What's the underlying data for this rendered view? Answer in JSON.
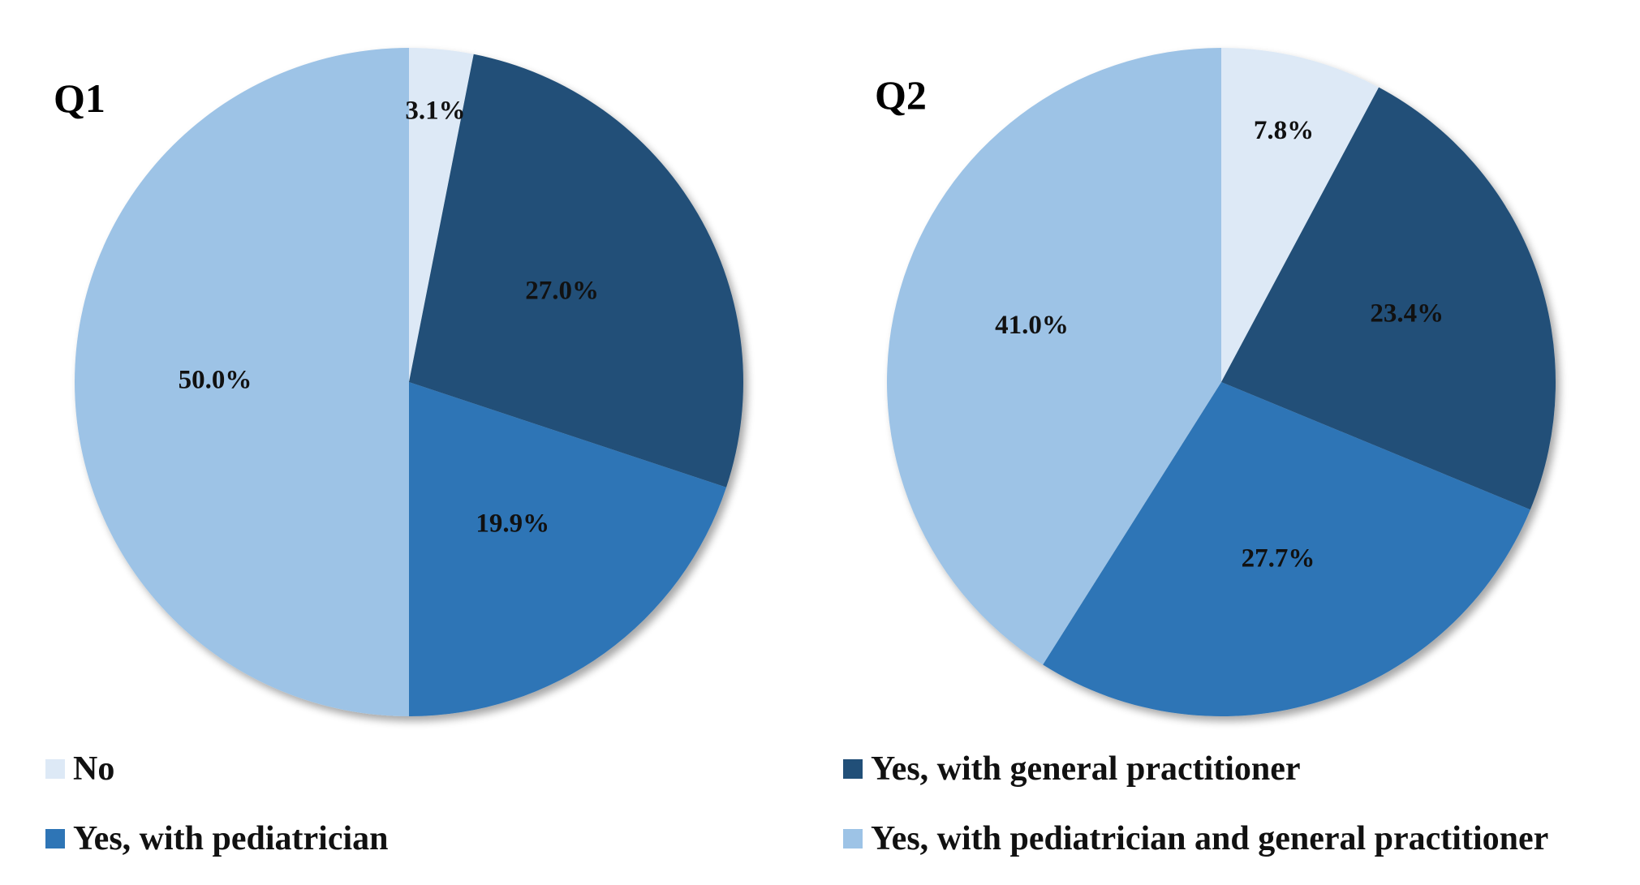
{
  "chart_data": [
    {
      "type": "pie",
      "title": "Q1",
      "categories": [
        "No",
        "Yes, with general practitioner",
        "Yes, with pediatrician",
        "Yes, with pediatrician and general practitioner"
      ],
      "values": [
        3.1,
        27.0,
        19.9,
        50.0
      ],
      "data_labels": [
        "3.1%",
        "27.0%",
        "19.9%",
        "50.0%"
      ],
      "start_angle_deg": 0,
      "direction": "clockwise"
    },
    {
      "type": "pie",
      "title": "Q2",
      "categories": [
        "No",
        "Yes, with general practitioner",
        "Yes, with pediatrician",
        "Yes, with pediatrician and general practitioner"
      ],
      "values": [
        7.8,
        23.4,
        27.7,
        41.0
      ],
      "data_labels": [
        "7.8%",
        "23.4%",
        "27.7%",
        "41.0%"
      ],
      "start_angle_deg": 0,
      "direction": "clockwise"
    }
  ],
  "legend": {
    "placement": "bottom",
    "items": [
      {
        "label": "No",
        "color": "#dde9f6"
      },
      {
        "label": "Yes, with general practitioner",
        "color": "#214f78"
      },
      {
        "label": "Yes, with pediatrician",
        "color": "#2e75b6"
      },
      {
        "label": "Yes, with pediatrician and general practitioner",
        "color": "#9dc3e6"
      }
    ]
  },
  "colors": [
    "#dde9f6",
    "#214f78",
    "#2e75b6",
    "#9dc3e6"
  ]
}
